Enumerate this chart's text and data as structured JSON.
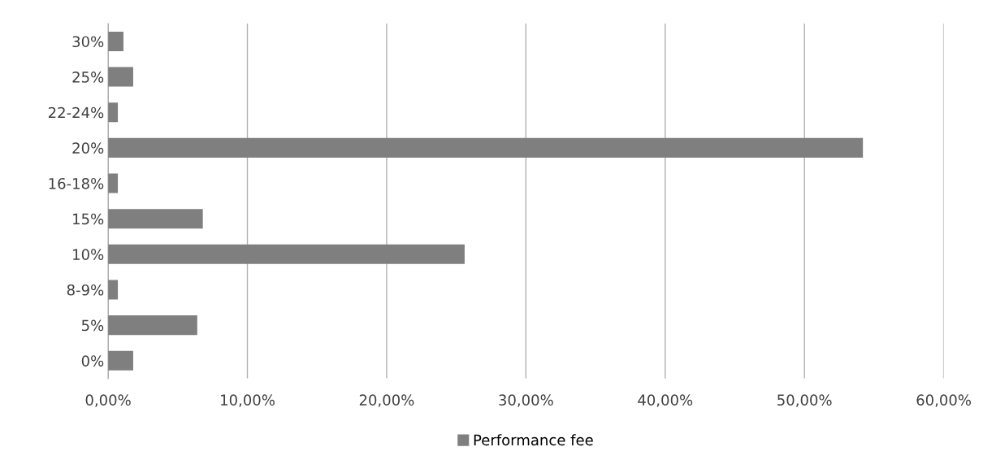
{
  "chart_data": {
    "type": "bar",
    "orientation": "horizontal",
    "categories": [
      "30%",
      "25%",
      "22-24%",
      "20%",
      "16-18%",
      "15%",
      "10%",
      "8-9%",
      "5%",
      "0%"
    ],
    "series": [
      {
        "name": "Performance fee",
        "color": "#7f7f7f",
        "values": [
          1.1,
          1.8,
          0.7,
          54.2,
          0.7,
          6.8,
          25.6,
          0.7,
          6.4,
          1.8
        ]
      }
    ],
    "xlim": [
      0,
      60
    ],
    "xticks": [
      {
        "value": 0,
        "label": "0,00%"
      },
      {
        "value": 10,
        "label": "10,00%"
      },
      {
        "value": 20,
        "label": "20,00%"
      },
      {
        "value": 30,
        "label": "30,00%"
      },
      {
        "value": 40,
        "label": "40,00%"
      },
      {
        "value": 50,
        "label": "50,00%"
      },
      {
        "value": 60,
        "label": "60,00%"
      }
    ],
    "grid": "x",
    "legend": "bottom"
  }
}
